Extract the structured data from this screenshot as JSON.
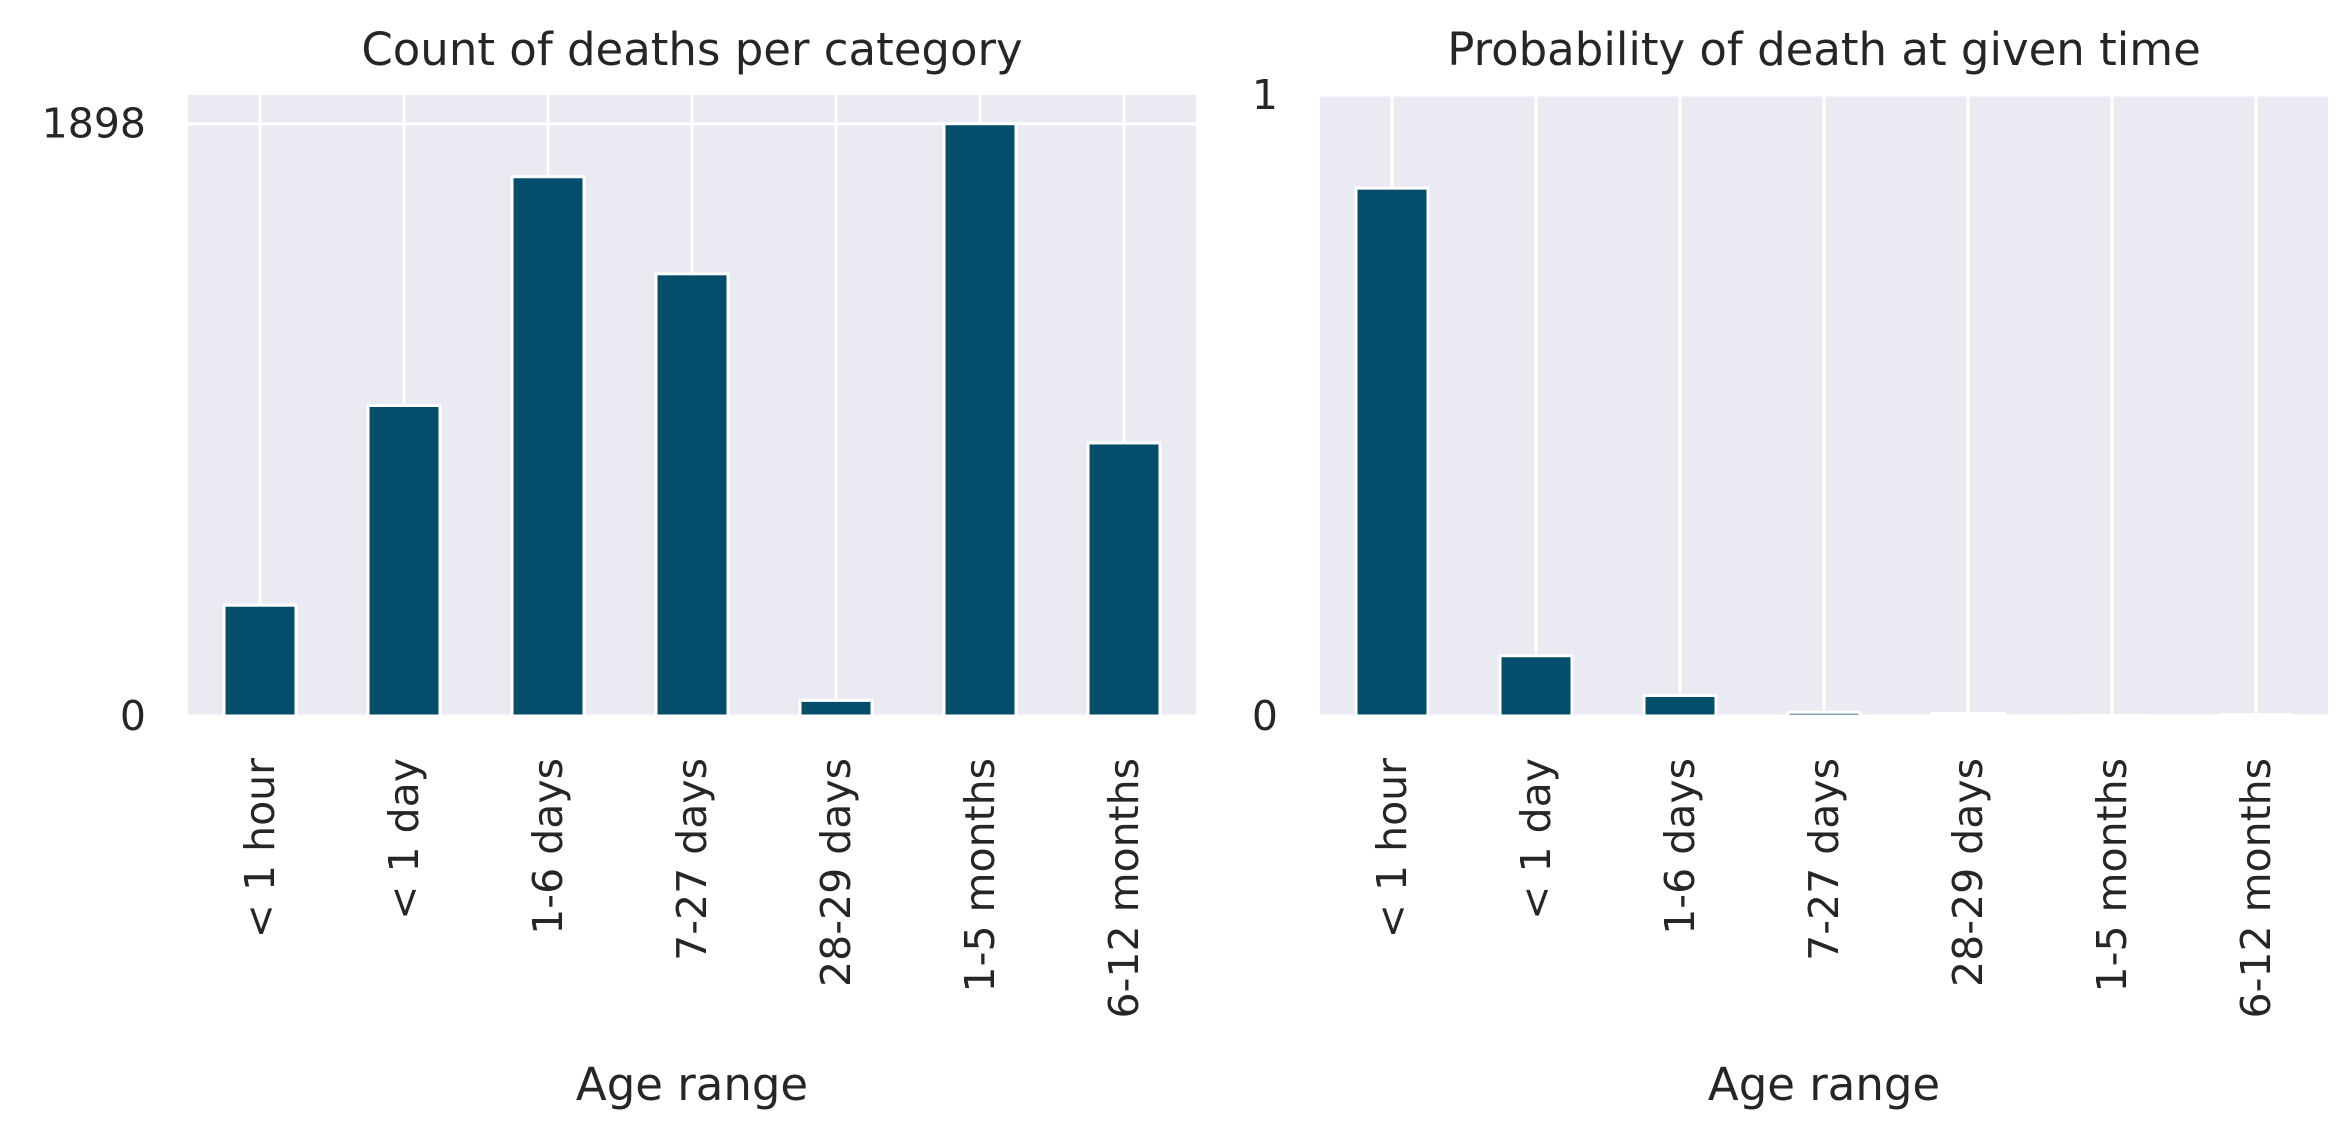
{
  "chart_data": [
    {
      "type": "bar",
      "title": "Count of deaths per category",
      "xlabel": "Age range",
      "ylabel": "",
      "categories": [
        "< 1 hour",
        "< 1 day",
        "1-6 days",
        "7-27 days",
        "28-29 days",
        "1-5 months",
        "6-12 months"
      ],
      "values": [
        355,
        995,
        1728,
        1417,
        50,
        1898,
        875
      ],
      "ylim": [
        0,
        1990
      ],
      "yticks": [
        0,
        1898
      ],
      "ytick_labels": [
        "0",
        "1898"
      ],
      "grid": true,
      "bar_color": "#054e6c"
    },
    {
      "type": "bar",
      "title": "Probability of death at given time",
      "xlabel": "Age range",
      "ylabel": "",
      "categories": [
        "< 1 hour",
        "< 1 day",
        "1-6 days",
        "7-27 days",
        "28-29 days",
        "1-5 months",
        "6-12 months"
      ],
      "values": [
        0.85,
        0.097,
        0.033,
        0.006,
        0.004,
        0.001,
        0.002
      ],
      "ylim": [
        0,
        1
      ],
      "yticks": [
        0,
        1
      ],
      "ytick_labels": [
        "0",
        "1"
      ],
      "grid": true,
      "bar_color": "#054e6c"
    }
  ]
}
